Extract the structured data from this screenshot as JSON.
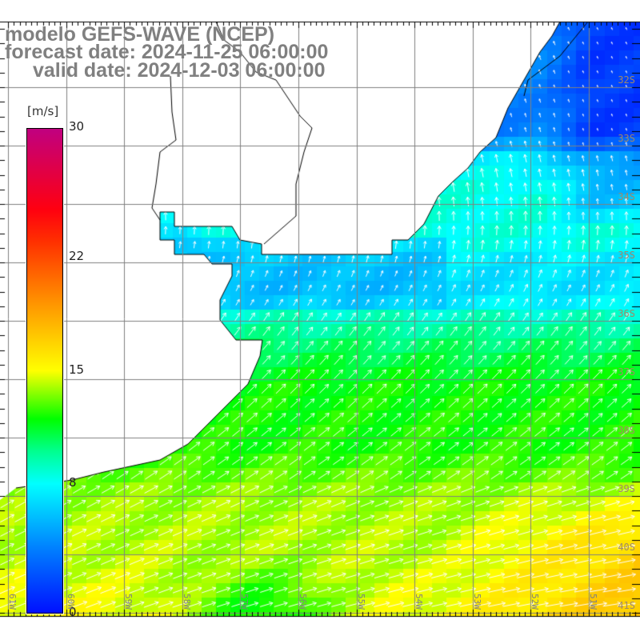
{
  "title": {
    "line1": "modelo GEFS-WAVE (NCEP)",
    "line2": "forecast date: 2024-11-25 06:00:00",
    "line3": "valid date: 2024-12-03 06:00:00"
  },
  "colorbar": {
    "unit": "[m/s]",
    "min": 0,
    "max": 30,
    "ticks": [
      {
        "value": 30,
        "label": "30"
      },
      {
        "value": 22,
        "label": "22"
      },
      {
        "value": 15,
        "label": "15"
      },
      {
        "value": 8,
        "label": "8"
      },
      {
        "value": 0,
        "label": "0"
      }
    ],
    "stops": [
      {
        "value": 0,
        "color": "#0010ff"
      },
      {
        "value": 4,
        "color": "#0080ff"
      },
      {
        "value": 8,
        "color": "#00ffff"
      },
      {
        "value": 10,
        "color": "#00ff90"
      },
      {
        "value": 12,
        "color": "#00ff00"
      },
      {
        "value": 15,
        "color": "#ffff00"
      },
      {
        "value": 19,
        "color": "#ff9900"
      },
      {
        "value": 23,
        "color": "#ff3000"
      },
      {
        "value": 25,
        "color": "#ff0010"
      },
      {
        "value": 30,
        "color": "#c00080"
      }
    ]
  },
  "lat_labels": [
    "32S",
    "33S",
    "34S",
    "35S",
    "36S",
    "37S",
    "38S",
    "39S",
    "40S",
    "41S"
  ],
  "lon_labels": [
    "61W",
    "60W",
    "59W",
    "58W",
    "57W",
    "56W",
    "55W",
    "54W",
    "53W",
    "52W",
    "51W"
  ],
  "colors": {
    "grid": "#808080",
    "coast": "#000000",
    "land": "#ffffff",
    "arrow": "#ffffff"
  }
}
